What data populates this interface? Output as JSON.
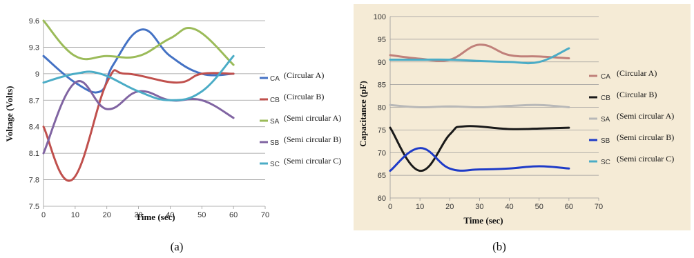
{
  "chart_data": [
    {
      "type": "line",
      "caption": "(a)",
      "xlabel": "Time (sec)",
      "ylabel": "Voltage (Volts)",
      "xlim": [
        0,
        70
      ],
      "ylim": [
        7.5,
        9.6
      ],
      "xticks": [
        "0",
        "10",
        "20",
        "30",
        "40",
        "50",
        "60",
        "70"
      ],
      "yticks": [
        "7.5",
        "7.8",
        "8.1",
        "8.4",
        "8.7",
        "9",
        "9.3",
        "9.6"
      ],
      "grid": "horizontal",
      "legend_position": "right",
      "series": [
        {
          "code": "CA",
          "name": "(Circular A)",
          "color": "#4472C4",
          "points": [
            [
              0,
              9.2
            ],
            [
              10,
              8.9
            ],
            [
              18,
              8.8
            ],
            [
              22,
              9.1
            ],
            [
              31,
              9.5
            ],
            [
              40,
              9.2
            ],
            [
              50,
              9.0
            ],
            [
              60,
              9.0
            ]
          ]
        },
        {
          "code": "CB",
          "name": "(Circular B)",
          "color": "#C0504D",
          "points": [
            [
              0,
              8.4
            ],
            [
              9,
              7.8
            ],
            [
              20,
              8.9
            ],
            [
              26,
              9.0
            ],
            [
              42,
              8.9
            ],
            [
              50,
              9.0
            ],
            [
              60,
              9.0
            ]
          ]
        },
        {
          "code": "SA",
          "name": "(Semi circular A)",
          "color": "#9BBB59",
          "points": [
            [
              0,
              9.6
            ],
            [
              10,
              9.2
            ],
            [
              20,
              9.2
            ],
            [
              30,
              9.2
            ],
            [
              40,
              9.4
            ],
            [
              48,
              9.5
            ],
            [
              60,
              9.1
            ]
          ]
        },
        {
          "code": "SB",
          "name": "(Semi circular B)",
          "color": "#8064A2",
          "points": [
            [
              0,
              8.1
            ],
            [
              10,
              8.9
            ],
            [
              20,
              8.6
            ],
            [
              30,
              8.8
            ],
            [
              40,
              8.7
            ],
            [
              50,
              8.7
            ],
            [
              60,
              8.5
            ]
          ]
        },
        {
          "code": "SC",
          "name": "(Semi circular C)",
          "color": "#4BACC6",
          "points": [
            [
              0,
              8.9
            ],
            [
              10,
              9.0
            ],
            [
              18,
              9.0
            ],
            [
              30,
              8.8
            ],
            [
              40,
              8.7
            ],
            [
              50,
              8.8
            ],
            [
              60,
              9.2
            ]
          ]
        }
      ]
    },
    {
      "type": "line",
      "caption": "(b)",
      "xlabel": "Time (sec)",
      "ylabel": "Capacitance (pF)",
      "xlim": [
        0,
        70
      ],
      "ylim": [
        60,
        100
      ],
      "xticks": [
        "0",
        "10",
        "20",
        "30",
        "40",
        "50",
        "60",
        "70"
      ],
      "yticks": [
        "60",
        "65",
        "70",
        "75",
        "80",
        "85",
        "90",
        "95",
        "100"
      ],
      "grid": "horizontal",
      "legend_position": "right",
      "background": "#F5EBD6",
      "series": [
        {
          "code": "CA",
          "name": "(Circular A)",
          "color": "#C0807A",
          "points": [
            [
              0,
              91.5
            ],
            [
              10,
              90.7
            ],
            [
              20,
              90.5
            ],
            [
              30,
              93.8
            ],
            [
              40,
              91.5
            ],
            [
              50,
              91.2
            ],
            [
              60,
              90.8
            ]
          ]
        },
        {
          "code": "CB",
          "name": "(Circular B)",
          "color": "#1A1A1A",
          "points": [
            [
              0,
              75.5
            ],
            [
              10,
              66.0
            ],
            [
              20,
              74.0
            ],
            [
              25,
              75.8
            ],
            [
              40,
              75.2
            ],
            [
              50,
              75.3
            ],
            [
              60,
              75.5
            ]
          ]
        },
        {
          "code": "SA",
          "name": "(Semi circular A)",
          "color": "#B8B8B8",
          "points": [
            [
              0,
              80.5
            ],
            [
              10,
              80.0
            ],
            [
              20,
              80.2
            ],
            [
              30,
              80.0
            ],
            [
              40,
              80.3
            ],
            [
              50,
              80.5
            ],
            [
              60,
              80.0
            ]
          ]
        },
        {
          "code": "SB",
          "name": "(Semi circular B)",
          "color": "#1E3BC8",
          "points": [
            [
              0,
              66.0
            ],
            [
              10,
              71.0
            ],
            [
              20,
              66.5
            ],
            [
              30,
              66.3
            ],
            [
              40,
              66.5
            ],
            [
              50,
              67.0
            ],
            [
              60,
              66.5
            ]
          ]
        },
        {
          "code": "SC",
          "name": "(Semi circular C)",
          "color": "#4BACC6",
          "points": [
            [
              0,
              90.5
            ],
            [
              10,
              90.5
            ],
            [
              20,
              90.5
            ],
            [
              30,
              90.2
            ],
            [
              40,
              90.0
            ],
            [
              50,
              90.0
            ],
            [
              60,
              93.0
            ]
          ]
        }
      ]
    }
  ]
}
